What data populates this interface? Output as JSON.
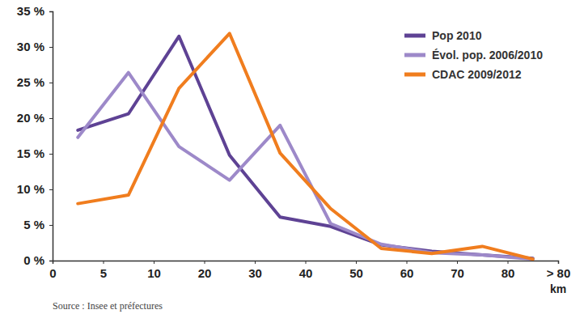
{
  "chart_data": {
    "type": "line",
    "source": "Source : Insee et préfectures",
    "x_label": "km",
    "x": [
      2.5,
      7.5,
      15,
      25,
      35,
      45,
      55,
      65,
      75,
      85
    ],
    "series": [
      {
        "name": "Pop 2010",
        "color": "#5e4294",
        "values": [
          18.3,
          20.6,
          31.5,
          14.8,
          6.1,
          4.8,
          2.2,
          1.3,
          0.8,
          0.3
        ]
      },
      {
        "name": "Évol. pop. 2006/2010",
        "color": "#9d89c9",
        "values": [
          17.3,
          26.4,
          16.0,
          11.3,
          19.0,
          5.2,
          2.3,
          1.1,
          0.8,
          0.2
        ]
      },
      {
        "name": "CDAC 2009/2012",
        "color": "#f07d1e",
        "values": [
          8.0,
          9.2,
          24.2,
          31.9,
          15.1,
          7.3,
          1.7,
          1.0,
          2.0,
          0.2
        ]
      }
    ],
    "xlim": [
      0,
      90
    ],
    "xticks": [
      0,
      5,
      10,
      20,
      30,
      40,
      50,
      60,
      70,
      80,
      {
        "value": 90,
        "label": "> 80"
      }
    ],
    "ylim": [
      0,
      35
    ],
    "yticks": [
      {
        "value": 0,
        "label": "0 %"
      },
      {
        "value": 5,
        "label": "5 %"
      },
      {
        "value": 10,
        "label": "10 %"
      },
      {
        "value": 15,
        "label": "15 %"
      },
      {
        "value": 20,
        "label": "20 %"
      },
      {
        "value": 25,
        "label": "25 %"
      },
      {
        "value": 30,
        "label": "30 %"
      },
      {
        "value": 35,
        "label": "35 %"
      }
    ],
    "grid": false,
    "legend": "top-right"
  }
}
